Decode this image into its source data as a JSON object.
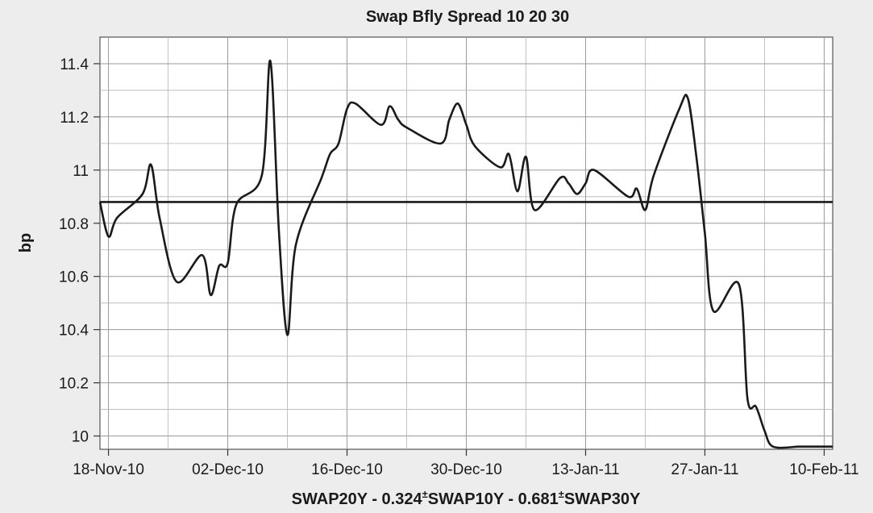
{
  "colors": {
    "background": "#ededed",
    "plot_background": "#ffffff",
    "line": "#1a1a1a",
    "grid": "#9a9a9a"
  },
  "chart_data": {
    "type": "line",
    "title": "Swap Bfly Spread 10 20 30",
    "xlabel": "SWAP20Y - 0.324*SWAP10Y - 0.681*SWAP30Y",
    "xlabel_parts": [
      "SWAP20Y - 0.324",
      "±",
      "SWAP10Y - 0.681",
      "±",
      "SWAP30Y"
    ],
    "ylabel": "bp",
    "ylim": [
      9.95,
      11.5
    ],
    "yticks": [
      10,
      10.2,
      10.4,
      10.6,
      10.8,
      11,
      11.2,
      11.4
    ],
    "ytick_labels": [
      "10",
      "10.2",
      "10.4",
      "10.6",
      "10.8",
      "11",
      "11.2",
      "11.4"
    ],
    "x_domain": [
      "2010-11-17",
      "2011-02-11"
    ],
    "xticks": [
      "2010-11-18",
      "2010-12-02",
      "2010-12-16",
      "2010-12-30",
      "2011-01-13",
      "2011-01-27",
      "2011-02-10"
    ],
    "xtick_labels": [
      "18-Nov-10",
      "02-Dec-10",
      "16-Dec-10",
      "30-Dec-10",
      "13-Jan-11",
      "27-Jan-11",
      "10-Feb-11"
    ],
    "grid": true,
    "mean_line": 10.88,
    "series": [
      {
        "x": [
          "2010-11-17",
          "2010-11-18",
          "2010-11-19",
          "2010-11-22",
          "2010-11-23",
          "2010-11-24",
          "2010-11-26",
          "2010-11-29",
          "2010-11-30",
          "2010-12-01",
          "2010-12-02",
          "2010-12-03",
          "2010-12-06",
          "2010-12-07",
          "2010-12-08",
          "2010-12-09",
          "2010-12-10",
          "2010-12-13",
          "2010-12-14",
          "2010-12-15",
          "2010-12-16",
          "2010-12-17",
          "2010-12-20",
          "2010-12-21",
          "2010-12-22",
          "2010-12-23",
          "2010-12-27",
          "2010-12-28",
          "2010-12-29",
          "2010-12-30",
          "2010-12-31",
          "2011-01-03",
          "2011-01-04",
          "2011-01-05",
          "2011-01-06",
          "2011-01-07",
          "2011-01-10",
          "2011-01-11",
          "2011-01-12",
          "2011-01-13",
          "2011-01-14",
          "2011-01-18",
          "2011-01-19",
          "2011-01-20",
          "2011-01-21",
          "2011-01-24",
          "2011-01-25",
          "2011-01-26",
          "2011-01-27",
          "2011-01-28",
          "2011-01-31",
          "2011-02-01",
          "2011-02-02",
          "2011-02-03",
          "2011-02-04",
          "2011-02-07",
          "2011-02-08",
          "2011-02-09",
          "2011-02-10",
          "2011-02-11"
        ],
        "values": [
          10.88,
          10.75,
          10.82,
          10.91,
          11.02,
          10.82,
          10.58,
          10.68,
          10.53,
          10.64,
          10.65,
          10.87,
          10.98,
          11.41,
          10.77,
          10.38,
          10.72,
          10.97,
          11.06,
          11.1,
          11.23,
          11.25,
          11.17,
          11.24,
          11.19,
          11.16,
          11.1,
          11.19,
          11.25,
          11.17,
          11.09,
          11.01,
          11.06,
          10.92,
          11.05,
          10.85,
          10.97,
          10.95,
          10.91,
          10.95,
          11.0,
          10.9,
          10.93,
          10.85,
          10.98,
          11.23,
          11.27,
          11.05,
          10.76,
          10.47,
          10.57,
          10.14,
          10.11,
          10.02,
          9.96,
          9.96,
          9.96,
          9.96,
          9.96,
          9.96
        ]
      }
    ]
  }
}
